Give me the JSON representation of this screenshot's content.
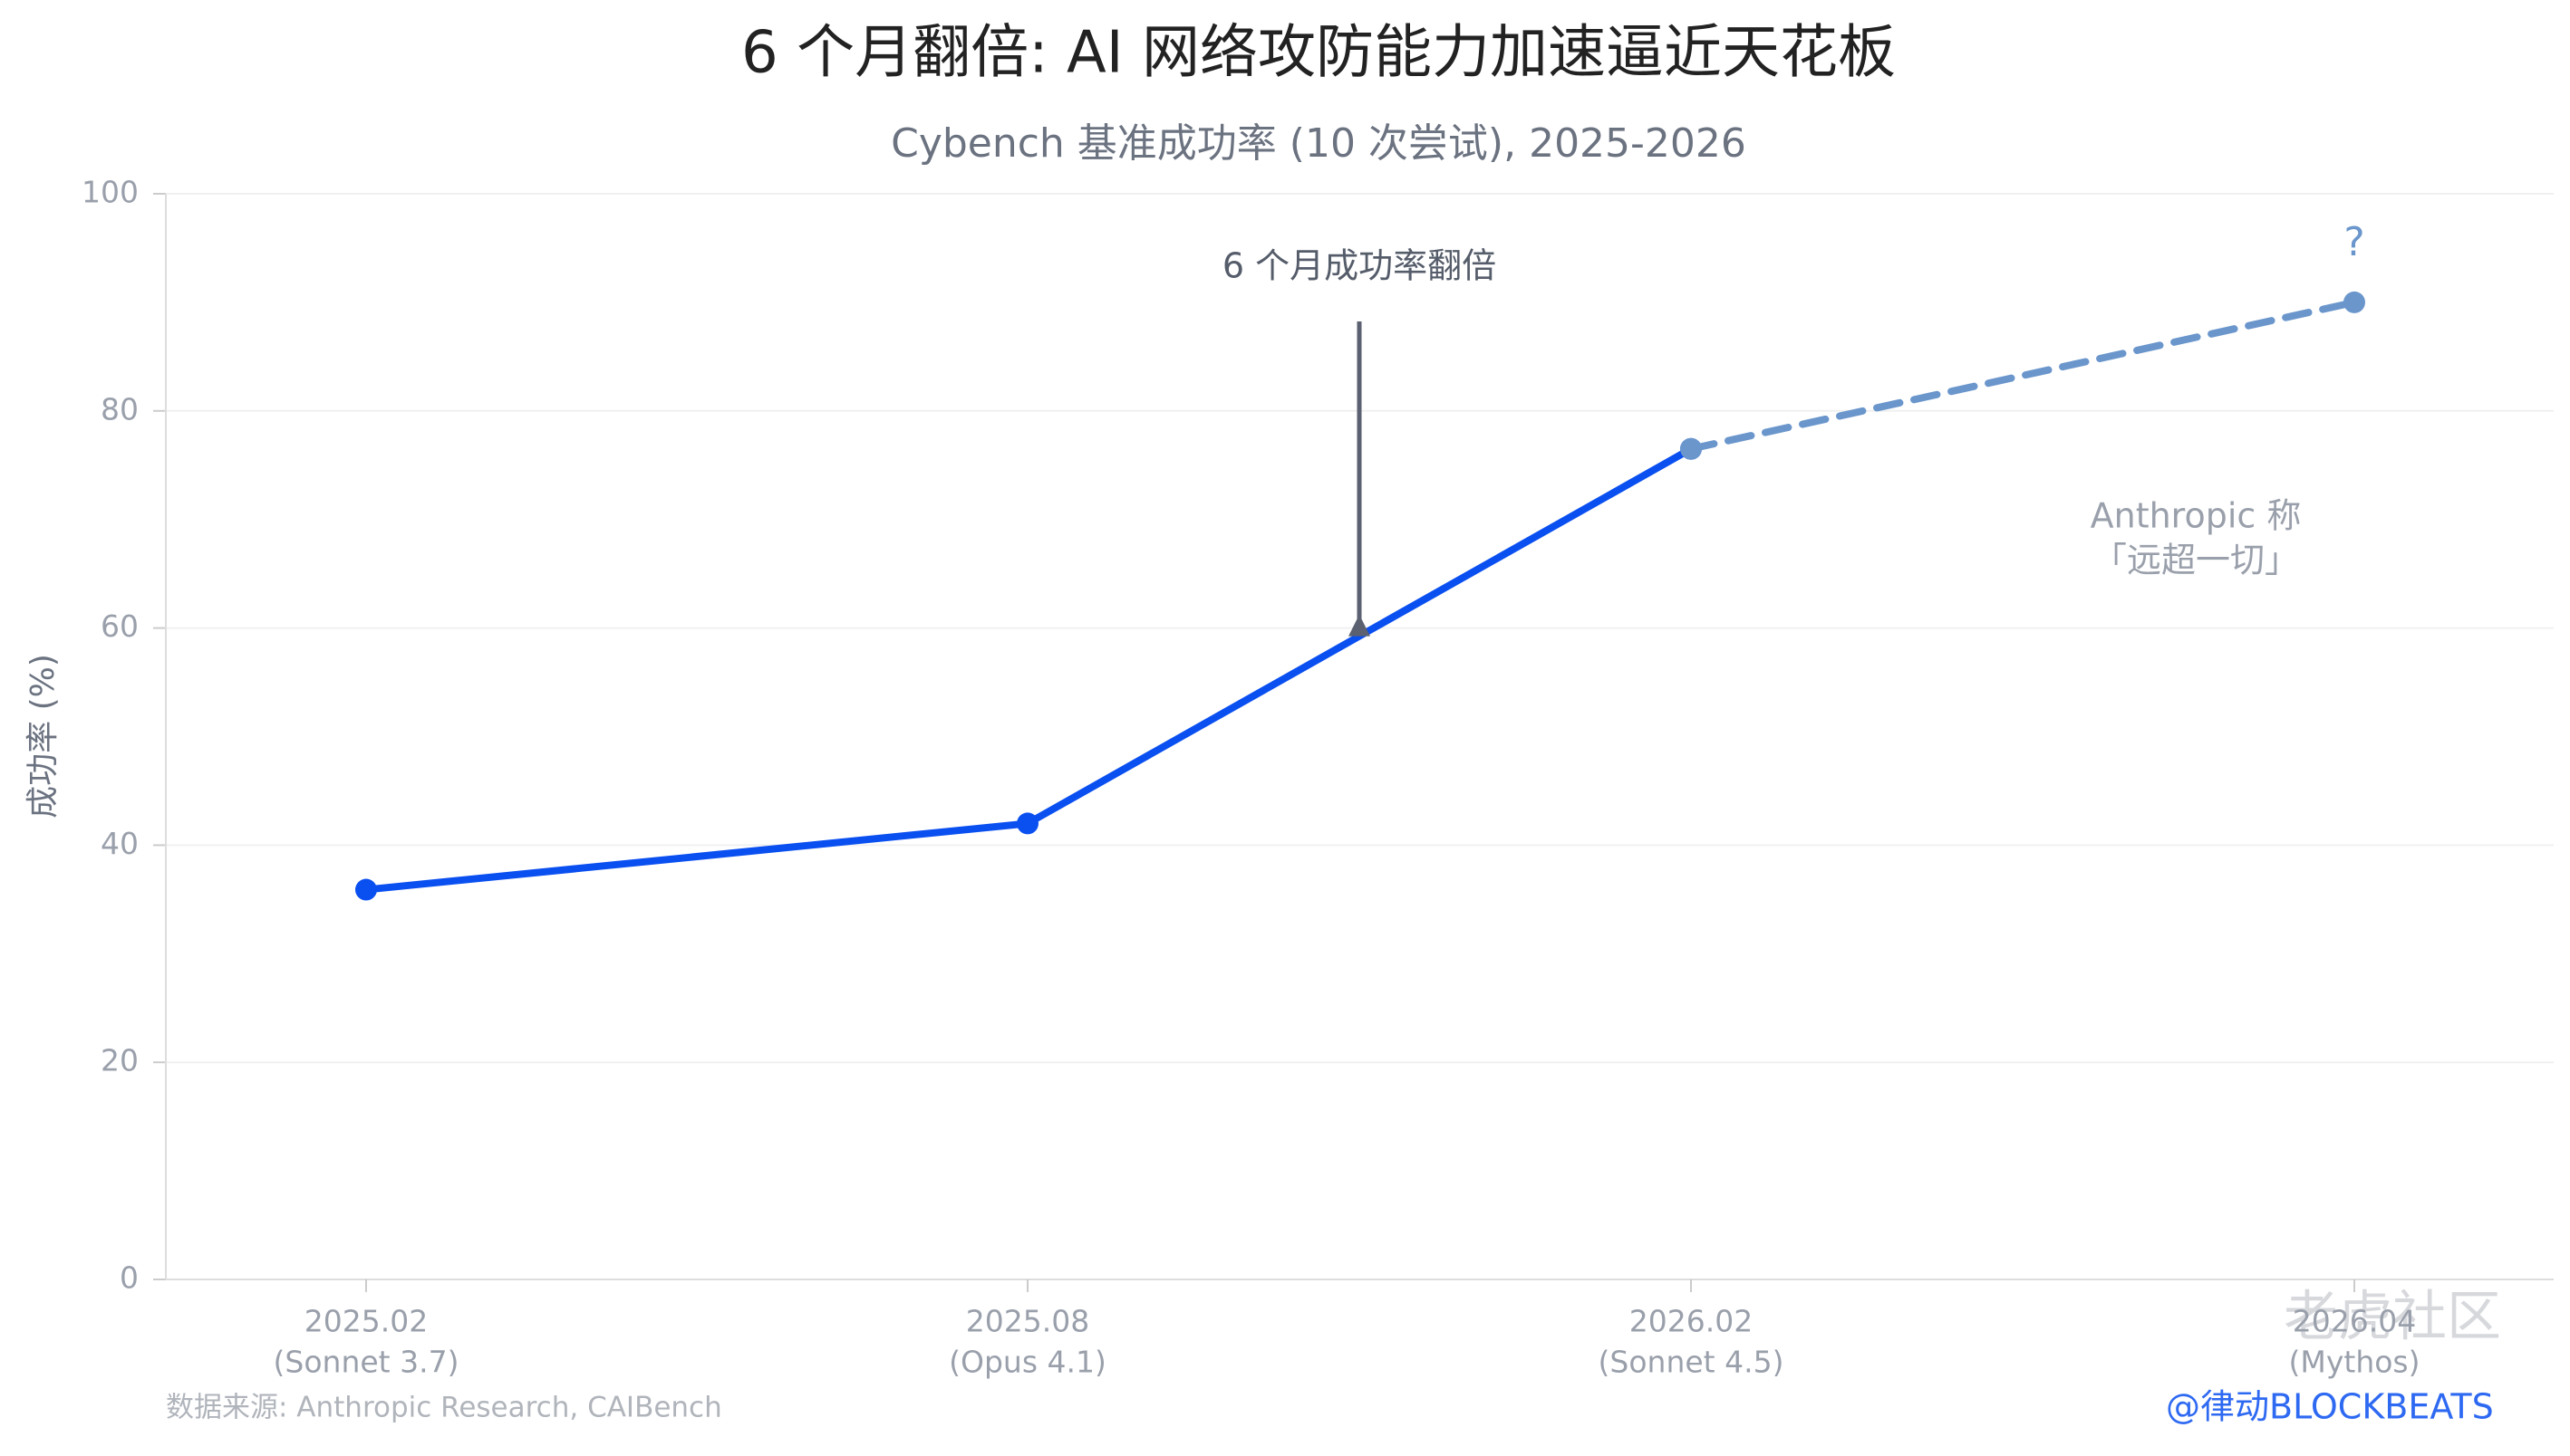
{
  "chart_data": {
    "type": "line",
    "title": "6 个月翻倍: AI 网络攻防能力加速逼近天花板",
    "subtitle": "Cybench 基准成功率 (10 次尝试), 2025-2026",
    "y_label": "成功率 (%)",
    "categories": [
      "2025.02",
      "2025.08",
      "2026.02",
      "2026.04"
    ],
    "category_sublabels": [
      "(Sonnet 3.7)",
      "(Opus 4.1)",
      "(Sonnet 4.5)",
      "(Mythos)"
    ],
    "series": [
      {
        "color": "#0a4ff0",
        "dashed": false,
        "values": [
          35.9,
          42,
          76.5,
          null
        ]
      },
      {
        "color": "#6a96cc",
        "dashed": true,
        "values": [
          null,
          null,
          76.5,
          90
        ]
      }
    ],
    "ylim": [
      0,
      100
    ],
    "yticks": [
      0,
      20,
      40,
      60,
      80,
      100
    ],
    "grid": true,
    "annotations": {
      "doubling": "6 个月成功率翻倍",
      "question": "?",
      "claim": [
        "Anthropic 称",
        "「远超一切」"
      ]
    },
    "source": "数据来源: Anthropic Research, CAIBench",
    "watermarks": [
      "老虎社区",
      "@律动BLOCKBEATS"
    ]
  }
}
